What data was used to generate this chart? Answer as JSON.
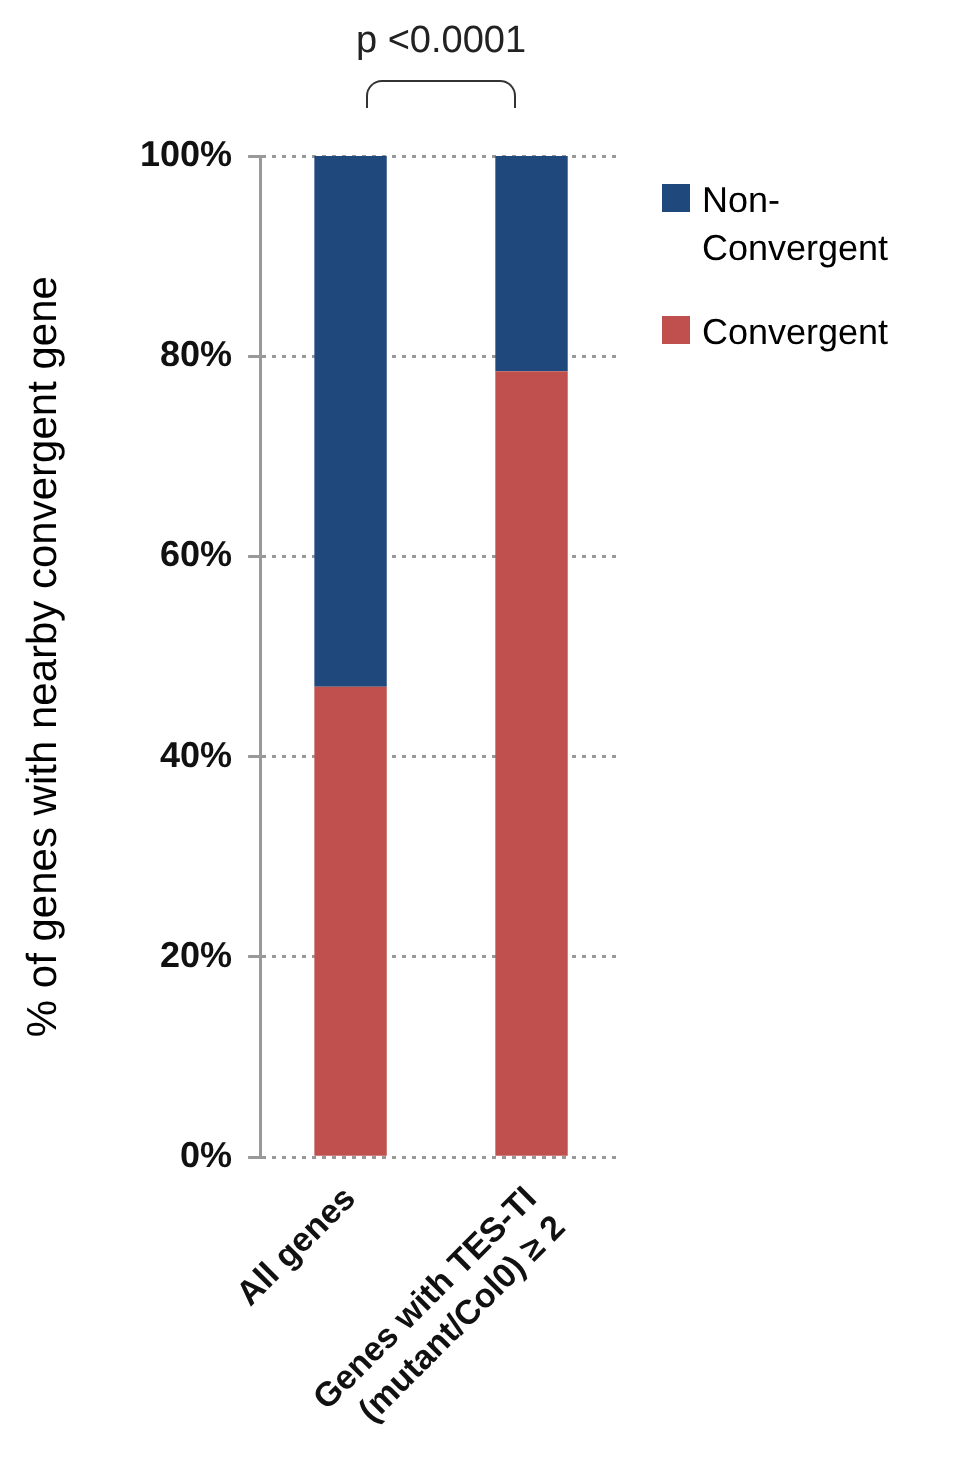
{
  "chart_data": {
    "type": "bar",
    "stacked": true,
    "ylabel": "% of genes with nearby convergent gene",
    "categories": [
      "All genes",
      "Genes with TES-TI (mutant/Col0) ≥ 2"
    ],
    "series": [
      {
        "name": "Convergent",
        "color": "#c0504d",
        "values": [
          47,
          78.5
        ]
      },
      {
        "name": "Non-Convergent",
        "color": "#1f497d",
        "values": [
          53,
          21.5
        ]
      }
    ],
    "ylim": [
      0,
      100
    ],
    "yticks": [
      {
        "value": 0,
        "label": "0%"
      },
      {
        "value": 20,
        "label": "20%"
      },
      {
        "value": 40,
        "label": "40%"
      },
      {
        "value": 60,
        "label": "60%"
      },
      {
        "value": 80,
        "label": "80%"
      },
      {
        "value": 100,
        "label": "100%"
      }
    ],
    "grid": "y",
    "legend": "top right",
    "annotations": [
      "p <0.0001"
    ]
  }
}
